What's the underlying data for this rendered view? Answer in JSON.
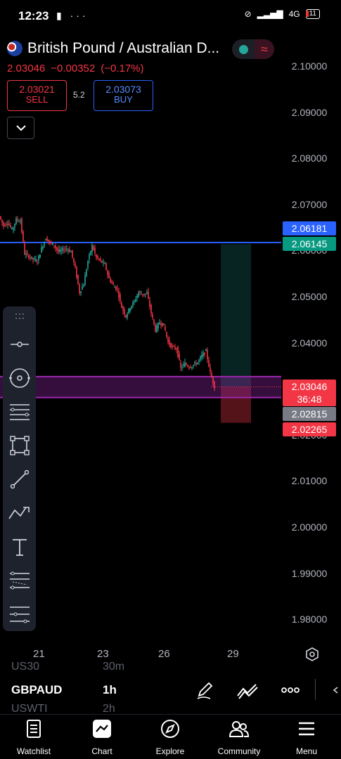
{
  "status_bar": {
    "time": "12:23",
    "network": "4G",
    "battery": "11"
  },
  "header": {
    "title": "British Pound / Australian D...",
    "last_price": "2.03046",
    "change": "−0.00352",
    "change_percent": "(−0.17%)",
    "sell_price": "2.03021",
    "sell_label": "SELL",
    "spread": "5.2",
    "buy_price": "2.03073",
    "buy_label": "BUY"
  },
  "price_axis": [
    "2.10000",
    "2.09000",
    "2.08000",
    "2.07000",
    "2.06000",
    "2.05000",
    "2.04000",
    "2.03000",
    "2.02000",
    "2.01000",
    "2.00000",
    "1.99000",
    "1.98000"
  ],
  "price_labels": {
    "line_upper": "2.06181",
    "entry": "2.06145",
    "current": "2.03046",
    "countdown": "36:48",
    "line_lower": "2.02815",
    "stop": "2.02265"
  },
  "time_axis": [
    "21",
    "23",
    "26",
    "29"
  ],
  "bottom_bar": {
    "symbol": "GBPAUD",
    "timeframe": "1h",
    "ghost_above_symbol": "US30",
    "ghost_above_tf": "30m",
    "ghost_below_symbol": "USWTI",
    "ghost_below_tf": "2h"
  },
  "nav": [
    {
      "label": "Watchlist",
      "icon": "watchlist-icon"
    },
    {
      "label": "Chart",
      "icon": "chart-icon"
    },
    {
      "label": "Explore",
      "icon": "compass-icon"
    },
    {
      "label": "Community",
      "icon": "community-icon"
    },
    {
      "label": "Menu",
      "icon": "menu-icon"
    }
  ],
  "colors": {
    "up": "#26a69a",
    "down": "#f23645",
    "blue_line": "#2962ff",
    "purple_zone": "#9c27b0"
  },
  "chart_data": {
    "type": "candlestick",
    "symbol": "GBPAUD",
    "timeframe": "1h",
    "ylim": [
      1.975,
      2.105
    ],
    "close_path": [
      [
        0,
        2.0675
      ],
      [
        6,
        2.0655
      ],
      [
        12,
        2.0662
      ],
      [
        18,
        2.0645
      ],
      [
        24,
        2.0668
      ],
      [
        30,
        2.0666
      ],
      [
        36,
        2.0594
      ],
      [
        42,
        2.0588
      ],
      [
        48,
        2.0582
      ],
      [
        54,
        2.0578
      ],
      [
        60,
        2.0605
      ],
      [
        66,
        2.0628
      ],
      [
        72,
        2.0618
      ],
      [
        78,
        2.0612
      ],
      [
        84,
        2.0598
      ],
      [
        90,
        2.0602
      ],
      [
        96,
        2.0605
      ],
      [
        102,
        2.0598
      ],
      [
        108,
        2.0562
      ],
      [
        114,
        2.051
      ],
      [
        120,
        2.0528
      ],
      [
        126,
        2.0578
      ],
      [
        132,
        2.0612
      ],
      [
        138,
        2.0585
      ],
      [
        144,
        2.0578
      ],
      [
        150,
        2.057
      ],
      [
        156,
        2.054
      ],
      [
        162,
        2.0525
      ],
      [
        168,
        2.0515
      ],
      [
        174,
        2.0478
      ],
      [
        180,
        2.0458
      ],
      [
        186,
        2.0478
      ],
      [
        192,
        2.049
      ],
      [
        198,
        2.051
      ],
      [
        204,
        2.0505
      ],
      [
        210,
        2.0508
      ],
      [
        216,
        2.0465
      ],
      [
        222,
        2.0428
      ],
      [
        228,
        2.0445
      ],
      [
        234,
        2.0438
      ],
      [
        240,
        2.0402
      ],
      [
        246,
        2.039
      ],
      [
        252,
        2.0388
      ],
      [
        258,
        2.0345
      ],
      [
        264,
        2.0355
      ],
      [
        270,
        2.0348
      ],
      [
        276,
        2.0352
      ],
      [
        282,
        2.0358
      ],
      [
        288,
        2.0372
      ],
      [
        294,
        2.0382
      ],
      [
        300,
        2.0335
      ],
      [
        306,
        2.0305
      ]
    ]
  }
}
